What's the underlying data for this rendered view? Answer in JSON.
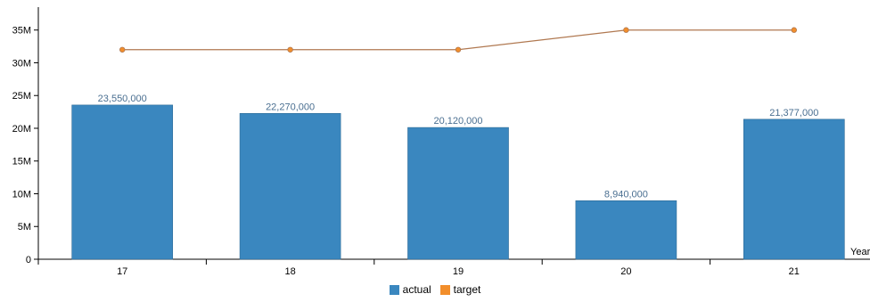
{
  "chart_data": {
    "type": "bar",
    "categories": [
      "17",
      "18",
      "19",
      "20",
      "21"
    ],
    "series": [
      {
        "name": "actual",
        "type": "bar",
        "values": [
          23550000,
          22270000,
          20120000,
          8940000,
          21377000
        ],
        "labels": [
          "23,550,000",
          "22,270,000",
          "20,120,000",
          "8,940,000",
          "21,377,000"
        ],
        "color": "#3a87bf"
      },
      {
        "name": "target",
        "type": "line",
        "values": [
          32000000,
          32000000,
          32000000,
          35000000,
          35000000
        ],
        "color": "#b07850",
        "marker_color": "#f28e2b"
      }
    ],
    "ylim": [
      0,
      38500000
    ],
    "yticks": [
      {
        "value": 0,
        "label": "0"
      },
      {
        "value": 5000000,
        "label": "5M"
      },
      {
        "value": 10000000,
        "label": "10M"
      },
      {
        "value": 15000000,
        "label": "15M"
      },
      {
        "value": 20000000,
        "label": "20M"
      },
      {
        "value": 25000000,
        "label": "25M"
      },
      {
        "value": 30000000,
        "label": "30M"
      },
      {
        "value": 35000000,
        "label": "35M"
      }
    ],
    "xlabel": "Year",
    "ylabel": "",
    "legend": [
      {
        "label": "actual",
        "color": "#3a87bf"
      },
      {
        "label": "target",
        "color": "#f28e2b"
      }
    ],
    "legend_position": "bottom",
    "grid": false
  }
}
